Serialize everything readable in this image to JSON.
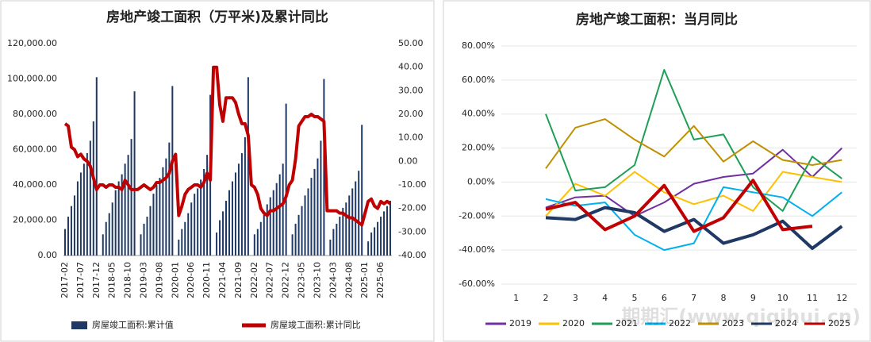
{
  "chart_data": [
    {
      "type": "bar",
      "title": "房地产竣工面积（万平米)及累计同比",
      "categories": [
        "2017-02",
        null,
        null,
        null,
        null,
        "2017-07",
        null,
        null,
        null,
        null,
        "2017-12",
        null,
        null,
        null,
        null,
        "2018-05",
        null,
        null,
        null,
        null,
        "2018-10",
        null,
        null,
        null,
        null,
        "2019-03",
        null,
        null,
        null,
        null,
        "2019-08",
        null,
        null,
        null,
        null,
        "2020-01",
        null,
        null,
        null,
        null,
        "2020-06",
        null,
        null,
        null,
        null,
        "2020-11",
        null,
        null,
        null,
        null,
        "2021-04",
        null,
        null,
        null,
        null,
        "2021-09",
        null,
        null,
        null,
        null,
        "2022-02",
        null,
        null,
        null,
        null,
        "2022-07",
        null,
        null,
        null,
        null,
        "2022-12",
        null,
        null,
        null,
        null,
        "2023-05",
        null,
        null,
        null,
        null,
        "2023-10",
        null,
        null,
        null,
        null,
        "2024-03",
        null,
        null,
        null,
        null,
        "2024-08",
        null,
        null,
        null,
        null,
        "2025-01",
        null,
        null,
        null,
        null,
        "2025-06",
        null,
        null,
        null
      ],
      "series": [
        {
          "name": "房屋竣工面积:累计值",
          "color": "#1f3864",
          "values": [
            15000,
            22000,
            28000,
            34000,
            42000,
            47000,
            52000,
            58000,
            65000,
            76000,
            101000,
            null,
            12000,
            19000,
            24000,
            30000,
            37000,
            42000,
            46000,
            52000,
            57000,
            66000,
            93000,
            null,
            12000,
            18000,
            22000,
            28000,
            35000,
            40000,
            44000,
            50000,
            55000,
            64000,
            96000,
            null,
            9000,
            15000,
            19000,
            24000,
            30000,
            35000,
            38000,
            43000,
            49000,
            57000,
            91000,
            null,
            13000,
            20000,
            25000,
            31000,
            37000,
            42000,
            47000,
            52000,
            58000,
            67000,
            101000,
            null,
            12000,
            15000,
            19000,
            23000,
            29000,
            33000,
            37000,
            41000,
            46000,
            52000,
            86000,
            null,
            12000,
            18000,
            23000,
            28000,
            34000,
            38000,
            44000,
            49000,
            55000,
            65000,
            100000,
            null,
            9000,
            15000,
            18000,
            22000,
            27000,
            30000,
            34000,
            38000,
            42000,
            48000,
            74000,
            null,
            8000,
            13000,
            16000,
            19000,
            22000,
            25000,
            28000,
            31000
          ]
        },
        {
          "name": "房屋竣工面积:累计同比",
          "color": "#c00000",
          "type": "line",
          "axis": "y2",
          "values": [
            16,
            15,
            6,
            5,
            2,
            3,
            1,
            0,
            -2,
            -7,
            -12,
            -10,
            -10,
            -11,
            -10,
            -10,
            -11,
            -11,
            -12,
            -8,
            -10,
            -12,
            -12,
            -12,
            -11,
            -10,
            -11,
            -12,
            -11,
            -9,
            -9,
            -8,
            -7,
            -5,
            0,
            3,
            -23,
            -19,
            -14,
            -12,
            -11,
            -10,
            -10,
            -11,
            -9,
            -5,
            -8,
            40,
            40,
            24,
            17,
            27,
            27,
            27,
            25,
            20,
            16,
            16,
            11,
            -10,
            -11,
            -14,
            -20,
            -22,
            -23,
            -21,
            -21,
            -20,
            -19,
            -18,
            -15,
            -10,
            -8,
            1,
            15,
            17,
            19,
            19,
            20,
            19,
            19,
            18,
            17,
            -21,
            -21,
            -21,
            -21,
            -22,
            -22,
            -23,
            -24,
            -24,
            -25,
            -26,
            -27,
            -22,
            -17,
            -16,
            -19,
            -20,
            -17,
            -18,
            -17,
            -18
          ]
        }
      ],
      "ylim": [
        0,
        120000
      ],
      "yticks": [
        {
          "value": 0,
          "label": "0.00"
        },
        {
          "value": 20000,
          "label": "20,000.00"
        },
        {
          "value": 40000,
          "label": "40,000.00"
        },
        {
          "value": 60000,
          "label": "60,000.00"
        },
        {
          "value": 80000,
          "label": "80,000.00"
        },
        {
          "value": 100000,
          "label": "100,000.00"
        },
        {
          "value": 120000,
          "label": "120,000.00"
        }
      ],
      "y2lim": [
        -40,
        50
      ],
      "y2ticks": [
        {
          "value": -40,
          "label": "-40.00"
        },
        {
          "value": -30,
          "label": "-30.00"
        },
        {
          "value": -20,
          "label": "-20.00"
        },
        {
          "value": -10,
          "label": "-10.00"
        },
        {
          "value": 0,
          "label": "0.00"
        },
        {
          "value": 10,
          "label": "10.00"
        },
        {
          "value": 20,
          "label": "20.00"
        },
        {
          "value": 30,
          "label": "30.00"
        },
        {
          "value": 40,
          "label": "40.00"
        },
        {
          "value": 50,
          "label": "50.00"
        }
      ]
    },
    {
      "type": "line",
      "title": "房地产竣工面积：当月同比",
      "categories": [
        "1",
        "2",
        "3",
        "4",
        "5",
        "6",
        "7",
        "8",
        "9",
        "10",
        "11",
        "12"
      ],
      "series": [
        {
          "name": "2019",
          "color": "#7030a0",
          "values": [
            null,
            -15,
            -9,
            -8,
            -20,
            -12,
            -1,
            3,
            5,
            19,
            3,
            20
          ]
        },
        {
          "name": "2020",
          "color": "#ffc000",
          "values": [
            null,
            -20,
            -1,
            -8,
            6,
            -6,
            -13,
            -8,
            -17,
            6,
            3,
            0
          ]
        },
        {
          "name": "2021",
          "color": "#1e9e57",
          "values": [
            null,
            40,
            -5,
            -3,
            10,
            66,
            25,
            28,
            -3,
            -17,
            15,
            2
          ]
        },
        {
          "name": "2022",
          "color": "#00b0f0",
          "values": [
            null,
            -10,
            -14,
            -12,
            -31,
            -40,
            -36,
            -3,
            -6,
            -9,
            -20,
            -6
          ]
        },
        {
          "name": "2023",
          "color": "#bf9000",
          "values": [
            null,
            8,
            32,
            37,
            25,
            15,
            33,
            12,
            24,
            13,
            10,
            13
          ]
        },
        {
          "name": "2024",
          "color": "#1f3864",
          "values": [
            null,
            -21,
            -22,
            -15,
            -18,
            -29,
            -22,
            -36,
            -31,
            -23,
            -39,
            -26
          ]
        },
        {
          "name": "2025",
          "color": "#c00000",
          "values": [
            null,
            -16,
            -12,
            -28,
            -20,
            -2,
            -29,
            -21,
            1,
            -28,
            -26,
            null
          ]
        }
      ],
      "ylim": [
        -60,
        80
      ],
      "yticks": [
        {
          "value": -60,
          "label": "-60.00%"
        },
        {
          "value": -40,
          "label": "-40.00%"
        },
        {
          "value": -20,
          "label": "-20.00%"
        },
        {
          "value": 0,
          "label": "0.00%"
        },
        {
          "value": 20,
          "label": "20.00%"
        },
        {
          "value": 40,
          "label": "40.00%"
        },
        {
          "value": 60,
          "label": "60.00%"
        },
        {
          "value": 80,
          "label": "80.00%"
        }
      ]
    }
  ],
  "watermark": "期期汇(www.qiqihui.cn)"
}
